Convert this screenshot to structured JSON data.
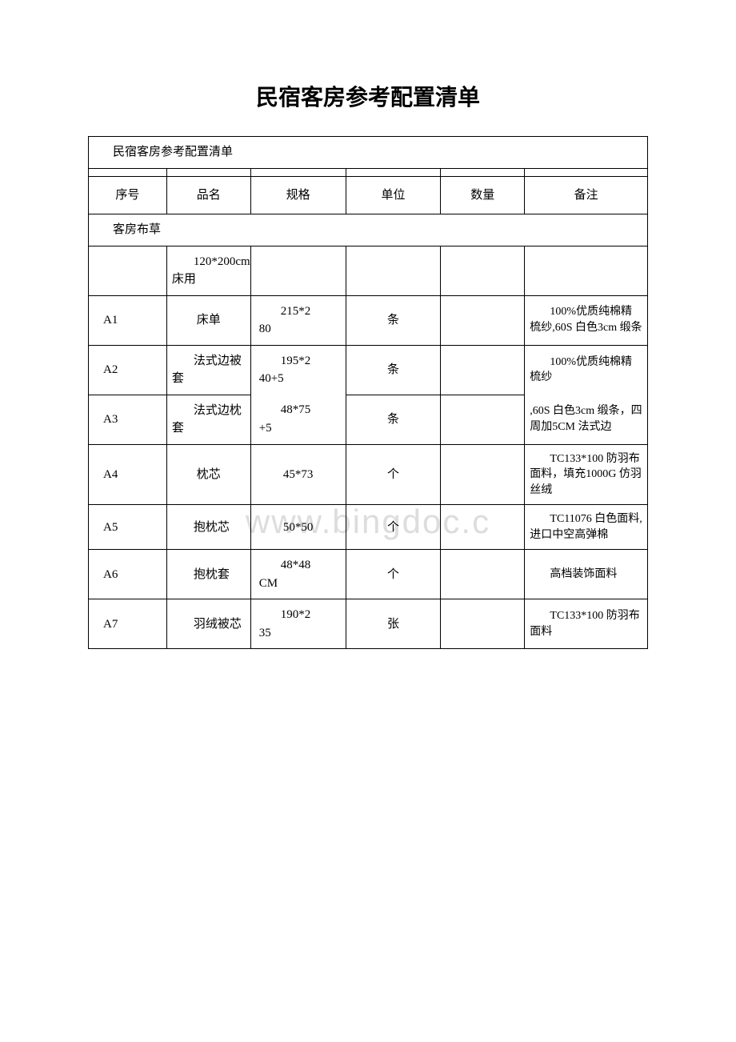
{
  "title": "民宿客房参考配置清单",
  "watermark": "www.bingdoc.c",
  "table": {
    "title_row": "民宿客房参考配置清单",
    "headers": {
      "seq": "序号",
      "name": "品名",
      "spec": "规格",
      "unit": "单位",
      "qty": "数量",
      "note": "备注"
    },
    "section": "客房布草",
    "subsection": "120*200cm 床用",
    "rows": [
      {
        "seq": "A1",
        "name": "床单",
        "spec_line1": "215*2",
        "spec_line2": "80",
        "unit": "条",
        "qty": "",
        "note_line1": "100%",
        "note_rest": "优质纯棉精梳纱,60S 白色3cm 缎条"
      },
      {
        "seq": "A2",
        "name": "法式边被套",
        "spec_line1": "195*2",
        "spec_line2": "40+5",
        "unit": "条",
        "qty": "",
        "note_line1": "100%",
        "note_rest": "优质纯棉精梳纱"
      },
      {
        "seq": "A3",
        "name": "法式边枕套",
        "spec_line1": "48*75",
        "spec_line2": "+5",
        "unit": "条",
        "qty": "",
        "note_line1": "",
        "note_rest": ",60S 白色3cm 缎条，四周加5CM 法式边"
      },
      {
        "seq": "A4",
        "name": "枕芯",
        "spec_line1": "45*73",
        "spec_line2": "",
        "unit": "个",
        "qty": "",
        "note_line1": "TC13",
        "note_rest": "3*100 防羽布面料，填充1000G 仿羽丝绒"
      },
      {
        "seq": "A5",
        "name": "抱枕芯",
        "spec_line1": "50*50",
        "spec_line2": "",
        "unit": "个",
        "qty": "",
        "note_line1": "TC11",
        "note_rest": "076 白色面料,进口中空高弹棉"
      },
      {
        "seq": "A6",
        "name": "抱枕套",
        "spec_line1": "48*48",
        "spec_line2": "CM",
        "unit": "个",
        "qty": "",
        "note_line1": "高档",
        "note_rest": "装饰面料"
      },
      {
        "seq": "A7",
        "name": "羽绒被芯",
        "spec_line1": "190*2",
        "spec_line2": "35",
        "unit": "张",
        "qty": "",
        "note_line1": "TC13",
        "note_rest": "3*100 防羽布面料"
      }
    ]
  }
}
